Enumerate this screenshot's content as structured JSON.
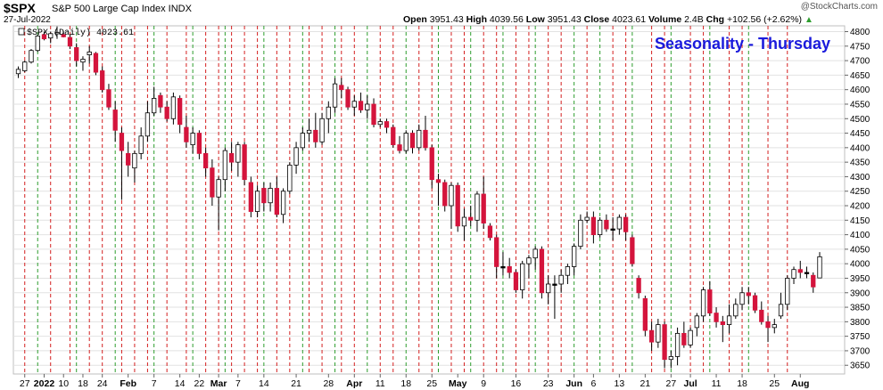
{
  "header": {
    "symbol": "$SPX",
    "description": "S&P 500 Large Cap Index INDX",
    "date": "27-Jul-2022",
    "credit": "@StockCharts.com",
    "open_label": "Open",
    "open": "3951.43",
    "high_label": "High",
    "high": "4039.56",
    "low_label": "Low",
    "low": "3951.43",
    "close_label": "Close",
    "close": "4023.61",
    "volume_label": "Volume",
    "volume": "2.4B",
    "chg_label": "Chg",
    "chg": "+102.56 (+2.62%)"
  },
  "legend": "$SPX (Daily) 4023.61",
  "chart_title": "Seasonality - Thursday",
  "colors": {
    "up": "#ffffff",
    "down": "#d4143c",
    "flat": "#000000",
    "title": "#1a1adc",
    "green_line": "#2e9d2e",
    "red_line": "#d42020"
  },
  "chart_data": {
    "type": "candlestick",
    "ylim": [
      3620,
      4820
    ],
    "yticks": [
      3650,
      3700,
      3750,
      3800,
      3850,
      3900,
      3950,
      4000,
      4050,
      4100,
      4150,
      4200,
      4250,
      4300,
      4350,
      4400,
      4450,
      4500,
      4550,
      4600,
      4650,
      4700,
      4750,
      4800
    ],
    "xticks": [
      {
        "i": 1,
        "label": "27"
      },
      {
        "i": 4,
        "label": "2022"
      },
      {
        "i": 7,
        "label": "10"
      },
      {
        "i": 10,
        "label": "18"
      },
      {
        "i": 13,
        "label": "24"
      },
      {
        "i": 17,
        "label": "Feb"
      },
      {
        "i": 21,
        "label": "7"
      },
      {
        "i": 25,
        "label": "14"
      },
      {
        "i": 28,
        "label": "22"
      },
      {
        "i": 31,
        "label": "Mar"
      },
      {
        "i": 34,
        "label": "7"
      },
      {
        "i": 38,
        "label": "14"
      },
      {
        "i": 43,
        "label": "21"
      },
      {
        "i": 48,
        "label": "28"
      },
      {
        "i": 52,
        "label": "Apr"
      },
      {
        "i": 56,
        "label": "11"
      },
      {
        "i": 60,
        "label": "18"
      },
      {
        "i": 64,
        "label": "25"
      },
      {
        "i": 68,
        "label": "May"
      },
      {
        "i": 72,
        "label": "9"
      },
      {
        "i": 77,
        "label": "16"
      },
      {
        "i": 82,
        "label": "23"
      },
      {
        "i": 86,
        "label": "Jun"
      },
      {
        "i": 89,
        "label": "6"
      },
      {
        "i": 93,
        "label": "13"
      },
      {
        "i": 97,
        "label": "21"
      },
      {
        "i": 101,
        "label": "27"
      },
      {
        "i": 104,
        "label": "Jul"
      },
      {
        "i": 108,
        "label": "11"
      },
      {
        "i": 112,
        "label": "18"
      },
      {
        "i": 117,
        "label": "25"
      },
      {
        "i": 121,
        "label": "Aug"
      }
    ],
    "candles": [
      [
        4655,
        4680,
        4640,
        4670
      ],
      [
        4665,
        4700,
        4660,
        4695
      ],
      [
        4695,
        4740,
        4690,
        4735
      ],
      [
        4735,
        4790,
        4730,
        4785
      ],
      [
        4790,
        4800,
        4770,
        4775
      ],
      [
        4778,
        4800,
        4760,
        4793
      ],
      [
        4793,
        4818,
        4775,
        4797
      ],
      [
        4790,
        4800,
        4780,
        4782
      ],
      [
        4780,
        4790,
        4740,
        4750
      ],
      [
        4745,
        4760,
        4680,
        4700
      ],
      [
        4695,
        4715,
        4665,
        4705
      ],
      [
        4720,
        4750,
        4690,
        4730
      ],
      [
        4725,
        4730,
        4650,
        4660
      ],
      [
        4665,
        4680,
        4590,
        4600
      ],
      [
        4600,
        4620,
        4530,
        4540
      ],
      [
        4530,
        4560,
        4420,
        4460
      ],
      [
        4450,
        4470,
        4220,
        4390
      ],
      [
        4380,
        4420,
        4300,
        4340
      ],
      [
        4330,
        4390,
        4280,
        4380
      ],
      [
        4380,
        4470,
        4360,
        4440
      ],
      [
        4440,
        4560,
        4420,
        4520
      ],
      [
        4520,
        4610,
        4510,
        4570
      ],
      [
        4580,
        4590,
        4520,
        4540
      ],
      [
        4540,
        4560,
        4490,
        4500
      ],
      [
        4500,
        4590,
        4480,
        4575
      ],
      [
        4570,
        4580,
        4450,
        4480
      ],
      [
        4470,
        4510,
        4400,
        4420
      ],
      [
        4410,
        4470,
        4380,
        4450
      ],
      [
        4450,
        4460,
        4360,
        4380
      ],
      [
        4380,
        4400,
        4300,
        4330
      ],
      [
        4330,
        4360,
        4200,
        4230
      ],
      [
        4230,
        4300,
        4115,
        4290
      ],
      [
        4290,
        4400,
        4250,
        4390
      ],
      [
        4380,
        4420,
        4320,
        4350
      ],
      [
        4350,
        4420,
        4300,
        4410
      ],
      [
        4410,
        4420,
        4270,
        4290
      ],
      [
        4280,
        4300,
        4160,
        4180
      ],
      [
        4180,
        4270,
        4160,
        4250
      ],
      [
        4260,
        4280,
        4180,
        4210
      ],
      [
        4210,
        4280,
        4180,
        4260
      ],
      [
        4260,
        4300,
        4160,
        4170
      ],
      [
        4170,
        4260,
        4140,
        4250
      ],
      [
        4250,
        4350,
        4240,
        4340
      ],
      [
        4340,
        4420,
        4310,
        4400
      ],
      [
        4400,
        4470,
        4390,
        4450
      ],
      [
        4450,
        4500,
        4420,
        4460
      ],
      [
        4460,
        4520,
        4400,
        4420
      ],
      [
        4420,
        4520,
        4410,
        4500
      ],
      [
        4500,
        4560,
        4450,
        4540
      ],
      [
        4540,
        4640,
        4520,
        4620
      ],
      [
        4615,
        4640,
        4570,
        4600
      ],
      [
        4600,
        4610,
        4530,
        4540
      ],
      [
        4540,
        4580,
        4510,
        4560
      ],
      [
        4560,
        4590,
        4520,
        4530
      ],
      [
        4530,
        4580,
        4500,
        4550
      ],
      [
        4550,
        4570,
        4470,
        4480
      ],
      [
        4480,
        4500,
        4470,
        4490
      ],
      [
        4490,
        4500,
        4450,
        4470
      ],
      [
        4470,
        4480,
        4400,
        4410
      ],
      [
        4410,
        4440,
        4380,
        4390
      ],
      [
        4390,
        4460,
        4380,
        4450
      ],
      [
        4450,
        4460,
        4380,
        4400
      ],
      [
        4400,
        4480,
        4390,
        4460
      ],
      [
        4460,
        4510,
        4390,
        4400
      ],
      [
        4400,
        4410,
        4260,
        4290
      ],
      [
        4290,
        4310,
        4200,
        4280
      ],
      [
        4280,
        4290,
        4180,
        4200
      ],
      [
        4200,
        4280,
        4120,
        4270
      ],
      [
        4270,
        4280,
        4110,
        4130
      ],
      [
        4130,
        4190,
        4080,
        4160
      ],
      [
        4160,
        4200,
        4130,
        4150
      ],
      [
        4150,
        4250,
        4110,
        4240
      ],
      [
        4240,
        4300,
        4120,
        4140
      ],
      [
        4130,
        4140,
        4080,
        4090
      ],
      [
        4090,
        4100,
        3950,
        3990
      ],
      [
        3990,
        4040,
        3960,
        3990
      ],
      [
        3990,
        4020,
        3950,
        3970
      ],
      [
        3970,
        3980,
        3900,
        3910
      ],
      [
        3910,
        4010,
        3880,
        4000
      ],
      [
        4000,
        4030,
        3950,
        4020
      ],
      [
        4020,
        4060,
        3980,
        4050
      ],
      [
        4050,
        4060,
        3880,
        3900
      ],
      [
        3900,
        3960,
        3860,
        3930
      ],
      [
        3930,
        3960,
        3810,
        3930
      ],
      [
        3930,
        3980,
        3900,
        3960
      ],
      [
        3960,
        4000,
        3930,
        3990
      ],
      [
        3990,
        4070,
        3960,
        4060
      ],
      [
        4060,
        4170,
        4050,
        4150
      ],
      [
        4150,
        4180,
        4140,
        4160
      ],
      [
        4160,
        4180,
        4070,
        4100
      ],
      [
        4100,
        4160,
        4090,
        4150
      ],
      [
        4150,
        4170,
        4110,
        4120
      ],
      [
        4120,
        4160,
        4080,
        4120
      ],
      [
        4120,
        4170,
        4100,
        4160
      ],
      [
        4160,
        4170,
        4080,
        4110
      ],
      [
        4090,
        4100,
        3990,
        4000
      ],
      [
        3950,
        3960,
        3880,
        3900
      ],
      [
        3880,
        3890,
        3750,
        3770
      ],
      [
        3770,
        3800,
        3700,
        3730
      ],
      [
        3730,
        3810,
        3710,
        3790
      ],
      [
        3790,
        3800,
        3640,
        3670
      ],
      [
        3670,
        3700,
        3640,
        3680
      ],
      [
        3680,
        3780,
        3650,
        3760
      ],
      [
        3760,
        3800,
        3710,
        3720
      ],
      [
        3720,
        3780,
        3710,
        3770
      ],
      [
        3780,
        3830,
        3750,
        3820
      ],
      [
        3820,
        3920,
        3800,
        3910
      ],
      [
        3910,
        3940,
        3820,
        3830
      ],
      [
        3830,
        3850,
        3780,
        3800
      ],
      [
        3800,
        3820,
        3730,
        3790
      ],
      [
        3790,
        3860,
        3760,
        3820
      ],
      [
        3820,
        3880,
        3810,
        3860
      ],
      [
        3860,
        3920,
        3840,
        3900
      ],
      [
        3900,
        3920,
        3860,
        3890
      ],
      [
        3890,
        3900,
        3830,
        3840
      ],
      [
        3840,
        3870,
        3790,
        3800
      ],
      [
        3800,
        3820,
        3730,
        3780
      ],
      [
        3780,
        3810,
        3760,
        3790
      ],
      [
        3820,
        3900,
        3810,
        3860
      ],
      [
        3860,
        3960,
        3840,
        3950
      ],
      [
        3950,
        3990,
        3930,
        3980
      ],
      [
        3980,
        4010,
        3950,
        3970
      ],
      [
        3970,
        3990,
        3950,
        3970
      ],
      [
        3960,
        3970,
        3900,
        3920
      ],
      [
        3951,
        4040,
        3951,
        4024
      ]
    ],
    "green_lines": [
      3,
      9,
      15,
      21,
      27,
      32,
      38,
      44,
      49,
      54,
      60,
      65,
      70,
      75,
      80,
      86,
      90,
      95,
      101,
      107,
      113
    ],
    "red_lines": [
      1,
      5,
      8,
      11,
      13,
      16,
      18,
      20,
      23,
      26,
      29,
      31,
      33,
      35,
      37,
      40,
      42,
      45,
      47,
      50,
      52,
      56,
      58,
      62,
      64,
      67,
      69,
      72,
      74,
      77,
      79,
      82,
      84,
      88,
      92,
      94,
      98,
      100,
      104,
      106,
      110,
      112,
      116,
      119
    ]
  }
}
